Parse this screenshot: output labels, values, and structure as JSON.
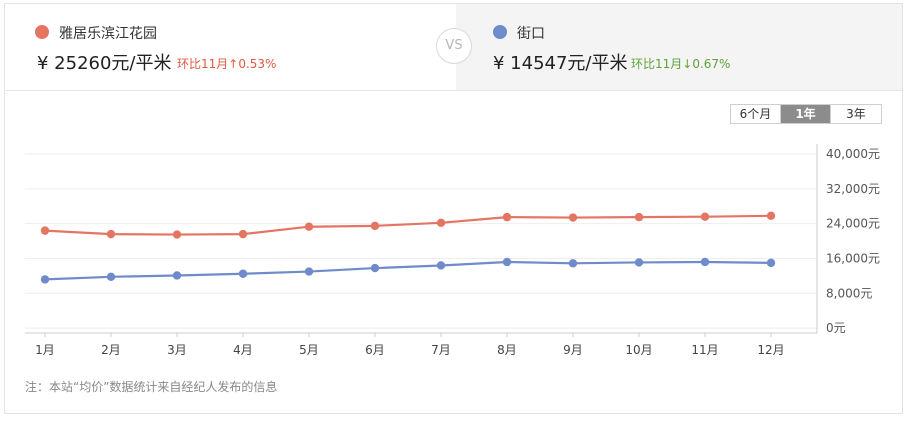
{
  "compare": {
    "left": {
      "name": "雅居乐滨江花园",
      "price": "¥ 25260元/平米",
      "change": "环比11月↑0.53%",
      "color": "#e57563",
      "change_color": "#e0593f"
    },
    "vs": "VS",
    "right": {
      "name": "街口",
      "price": "¥ 14547元/平米",
      "change": "环比11月↓0.67%",
      "color": "#6f8bcb",
      "change_color": "#5ea33a"
    }
  },
  "range_tabs": [
    {
      "label": "6个月",
      "active": false
    },
    {
      "label": "1年",
      "active": true
    },
    {
      "label": "3年",
      "active": false
    }
  ],
  "chart_data": {
    "type": "line",
    "categories": [
      "1月",
      "2月",
      "3月",
      "4月",
      "5月",
      "6月",
      "7月",
      "8月",
      "9月",
      "10月",
      "11月",
      "12月"
    ],
    "series": [
      {
        "name": "雅居乐滨江花园",
        "color": "#e57563",
        "values": [
          22400,
          21600,
          21500,
          21600,
          23300,
          23500,
          24200,
          25500,
          25400,
          25500,
          25600,
          25800
        ]
      },
      {
        "name": "街口",
        "color": "#6f8bcb",
        "values": [
          11200,
          11800,
          12100,
          12500,
          13000,
          13800,
          14400,
          15200,
          14900,
          15100,
          15200,
          15000
        ]
      }
    ],
    "yticks": [
      "40,000元",
      "32,000元",
      "24,000元",
      "16,000元",
      "8,000元",
      "0元"
    ],
    "ytick_values": [
      40000,
      32000,
      24000,
      16000,
      8000,
      0
    ],
    "ylim": [
      -8000,
      40000
    ],
    "grid": true
  },
  "footnote": "注：本站“均价”数据统计来自经纪人发布的信息"
}
